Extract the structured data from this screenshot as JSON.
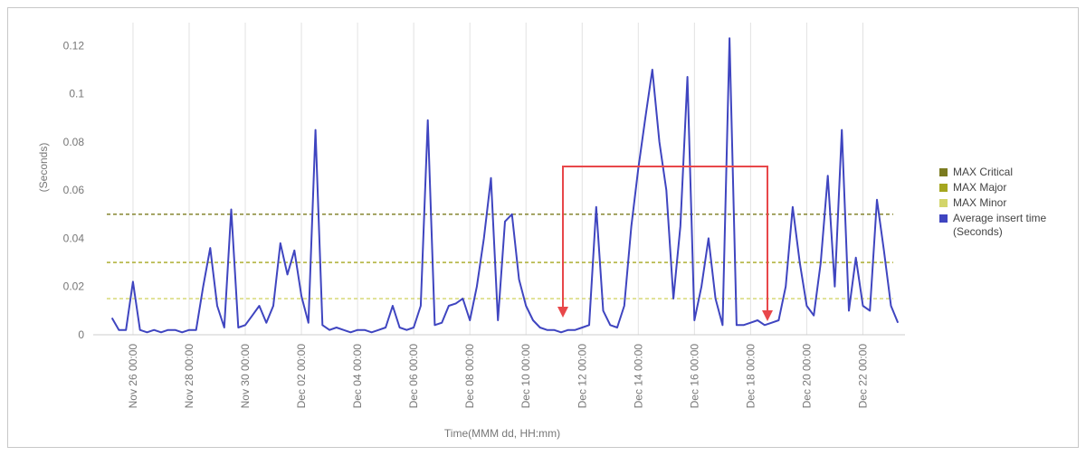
{
  "chart_data": {
    "type": "line",
    "y_label": "(Seconds)",
    "x_label": "Time(MMM dd, HH:mm)",
    "x": [
      "Nov 25 06:00",
      "Nov 25 12:00",
      "Nov 25 18:00",
      "Nov 26 00:00",
      "Nov 26 06:00",
      "Nov 26 12:00",
      "Nov 26 18:00",
      "Nov 27 00:00",
      "Nov 27 06:00",
      "Nov 27 12:00",
      "Nov 27 18:00",
      "Nov 28 00:00",
      "Nov 28 06:00",
      "Nov 28 12:00",
      "Nov 28 18:00",
      "Nov 29 00:00",
      "Nov 29 06:00",
      "Nov 29 12:00",
      "Nov 29 18:00",
      "Nov 30 00:00",
      "Nov 30 06:00",
      "Nov 30 12:00",
      "Nov 30 18:00",
      "Dec 01 00:00",
      "Dec 01 06:00",
      "Dec 01 12:00",
      "Dec 01 18:00",
      "Dec 02 00:00",
      "Dec 02 06:00",
      "Dec 02 12:00",
      "Dec 02 18:00",
      "Dec 03 00:00",
      "Dec 03 06:00",
      "Dec 03 12:00",
      "Dec 03 18:00",
      "Dec 04 00:00",
      "Dec 04 06:00",
      "Dec 04 12:00",
      "Dec 04 18:00",
      "Dec 05 00:00",
      "Dec 05 06:00",
      "Dec 05 12:00",
      "Dec 05 18:00",
      "Dec 06 00:00",
      "Dec 06 06:00",
      "Dec 06 12:00",
      "Dec 06 18:00",
      "Dec 07 00:00",
      "Dec 07 06:00",
      "Dec 07 12:00",
      "Dec 07 18:00",
      "Dec 08 00:00",
      "Dec 08 06:00",
      "Dec 08 12:00",
      "Dec 08 18:00",
      "Dec 09 00:00",
      "Dec 09 06:00",
      "Dec 09 12:00",
      "Dec 09 18:00",
      "Dec 10 00:00",
      "Dec 10 06:00",
      "Dec 10 12:00",
      "Dec 10 18:00",
      "Dec 11 00:00",
      "Dec 11 06:00",
      "Dec 11 12:00",
      "Dec 11 18:00",
      "Dec 12 00:00",
      "Dec 12 06:00",
      "Dec 12 12:00",
      "Dec 12 18:00",
      "Dec 13 00:00",
      "Dec 13 06:00",
      "Dec 13 12:00",
      "Dec 13 18:00",
      "Dec 14 00:00",
      "Dec 14 06:00",
      "Dec 14 12:00",
      "Dec 14 18:00",
      "Dec 15 00:00",
      "Dec 15 06:00",
      "Dec 15 12:00",
      "Dec 15 18:00",
      "Dec 16 00:00",
      "Dec 16 06:00",
      "Dec 16 12:00",
      "Dec 16 18:00",
      "Dec 17 00:00",
      "Dec 17 06:00",
      "Dec 17 12:00",
      "Dec 17 18:00",
      "Dec 18 00:00",
      "Dec 18 06:00",
      "Dec 18 12:00",
      "Dec 18 18:00",
      "Dec 19 00:00",
      "Dec 19 06:00",
      "Dec 19 12:00",
      "Dec 19 18:00",
      "Dec 20 00:00",
      "Dec 20 06:00",
      "Dec 20 12:00",
      "Dec 20 18:00",
      "Dec 21 00:00",
      "Dec 21 06:00",
      "Dec 21 12:00",
      "Dec 21 18:00",
      "Dec 22 00:00",
      "Dec 22 06:00",
      "Dec 22 12:00",
      "Dec 22 18:00",
      "Dec 23 00:00",
      "Dec 23 06:00"
    ],
    "series": [
      {
        "name": "Average insert time (Seconds)",
        "color": "#3f45c0",
        "values": [
          0.007,
          0.002,
          0.002,
          0.022,
          0.002,
          0.001,
          0.002,
          0.001,
          0.002,
          0.002,
          0.001,
          0.002,
          0.002,
          0.02,
          0.036,
          0.012,
          0.003,
          0.052,
          0.003,
          0.004,
          0.008,
          0.012,
          0.005,
          0.012,
          0.038,
          0.025,
          0.035,
          0.016,
          0.005,
          0.085,
          0.004,
          0.002,
          0.003,
          0.002,
          0.001,
          0.002,
          0.002,
          0.001,
          0.002,
          0.003,
          0.012,
          0.003,
          0.002,
          0.003,
          0.012,
          0.089,
          0.004,
          0.005,
          0.012,
          0.013,
          0.015,
          0.006,
          0.02,
          0.04,
          0.065,
          0.006,
          0.047,
          0.05,
          0.023,
          0.012,
          0.006,
          0.003,
          0.002,
          0.002,
          0.001,
          0.002,
          0.002,
          0.003,
          0.004,
          0.053,
          0.01,
          0.004,
          0.003,
          0.012,
          0.045,
          0.069,
          0.09,
          0.11,
          0.08,
          0.06,
          0.015,
          0.045,
          0.107,
          0.006,
          0.02,
          0.04,
          0.015,
          0.004,
          0.123,
          0.004,
          0.004,
          0.005,
          0.006,
          0.004,
          0.005,
          0.006,
          0.02,
          0.053,
          0.03,
          0.012,
          0.008,
          0.03,
          0.066,
          0.02,
          0.085,
          0.01,
          0.032,
          0.012,
          0.01,
          0.056,
          0.035,
          0.012,
          0.005
        ]
      }
    ],
    "thresholds": [
      {
        "name": "MAX Critical",
        "color": "#7b7b1f",
        "value": 0.05
      },
      {
        "name": "MAX Major",
        "color": "#a5a61f",
        "value": 0.03
      },
      {
        "name": "MAX Minor",
        "color": "#d3d56a",
        "value": 0.015
      }
    ],
    "xlim": [
      "Nov 24 14:00",
      "Dec 23 12:00"
    ],
    "xticks": [
      "Nov 26 00:00",
      "Nov 28 00:00",
      "Nov 30 00:00",
      "Dec 02 00:00",
      "Dec 04 00:00",
      "Dec 06 00:00",
      "Dec 08 00:00",
      "Dec 10 00:00",
      "Dec 12 00:00",
      "Dec 14 00:00",
      "Dec 16 00:00",
      "Dec 18 00:00",
      "Dec 20 00:00",
      "Dec 22 00:00"
    ],
    "ylim": [
      0,
      0.125
    ],
    "yticks": [
      0,
      0.02,
      0.04,
      0.06,
      0.08,
      0.1,
      0.12
    ],
    "grid": true
  }
}
